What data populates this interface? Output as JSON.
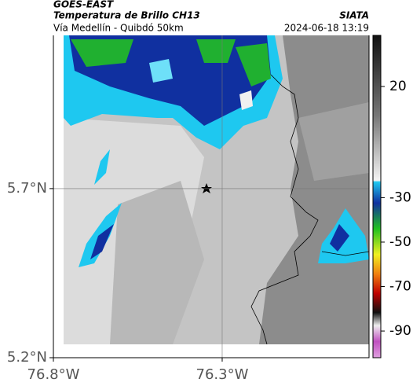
{
  "header": {
    "satellite": "GOES-EAST",
    "product": "Temperatura de Brillo CH13",
    "source": "SIATA",
    "route": "Vía Medellín - Quibdó 50km",
    "timestamp": "2024-06-18 13:19"
  },
  "map": {
    "lon_range": [
      -76.8,
      -75.865
    ],
    "lat_range": [
      5.2,
      6.153
    ],
    "lat_ticks": [
      {
        "value": 5.7,
        "label": "5.7°N"
      },
      {
        "value": 5.2,
        "label": "5.2°N"
      }
    ],
    "lon_ticks": [
      {
        "value": -76.8,
        "label": "76.8°W"
      },
      {
        "value": -76.3,
        "label": "76.3°W"
      }
    ]
  },
  "colorbar": {
    "range": [
      -102,
      43
    ],
    "ticks": [
      20,
      -30,
      -50,
      -70,
      -90
    ]
  }
}
